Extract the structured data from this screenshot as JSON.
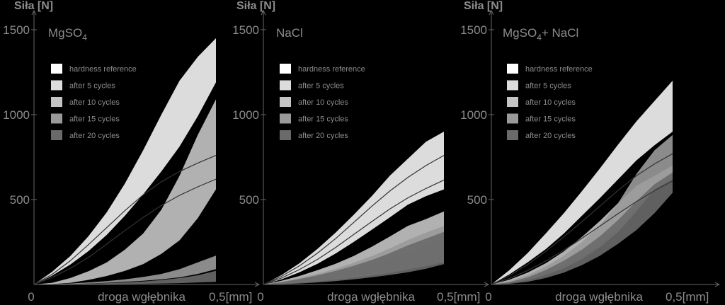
{
  "colors": {
    "background": "#000000",
    "axis": "#666666",
    "tick_text": "#8c8c8c",
    "hardness_reference": "#ffffff",
    "after_5_cycles": "#dcdcdc",
    "after_10_cycles": "#c4c4c4",
    "after_15_cycles": "#9a9a9a",
    "after_20_cycles": "#6a6a6a",
    "curve": "#333333"
  },
  "chart_data": [
    {
      "type": "area",
      "title": "MgSO",
      "title_subscript": "4",
      "title_suffix": "",
      "ylabel": "Siła [N]",
      "xlabel": "droga wgłębnika",
      "x_origin_label": "0",
      "x_end_label": "0,5[mm]",
      "ylim": [
        0,
        1500
      ],
      "xlim": [
        0,
        0.5
      ],
      "yticks": [
        500,
        1000,
        1500
      ],
      "legend_position": "top-left",
      "legend": [
        "hardness reference",
        "after 5 cycles",
        "after 10 cycles",
        "after 15 cycles",
        "after 20 cycles"
      ],
      "x": [
        0,
        0.05,
        0.1,
        0.15,
        0.2,
        0.25,
        0.3,
        0.35,
        0.4,
        0.45,
        0.5
      ],
      "bands": [
        {
          "name": "after 5 cycles",
          "color_key": "after_5_cycles",
          "lower": [
            0,
            52,
            118,
            197,
            292,
            405,
            530,
            666,
            812,
            990,
            1190
          ],
          "upper": [
            0,
            75,
            168,
            285,
            425,
            595,
            790,
            1000,
            1200,
            1340,
            1450
          ]
        },
        {
          "name": "after 10 cycles",
          "color_key": "after_10_cycles",
          "lower": [
            0,
            2,
            10,
            27,
            50,
            80,
            120,
            180,
            260,
            390,
            560
          ],
          "upper": [
            0,
            10,
            38,
            78,
            130,
            205,
            300,
            440,
            640,
            880,
            1090
          ]
        },
        {
          "name": "after 15 cycles",
          "color_key": "after_15_cycles",
          "lower": [
            0,
            0,
            2,
            6,
            10,
            16,
            22,
            30,
            42,
            62,
            90
          ],
          "upper": [
            0,
            2,
            6,
            12,
            20,
            30,
            44,
            62,
            90,
            130,
            170
          ]
        },
        {
          "name": "after 20 cycles",
          "color_key": "after_20_cycles",
          "lower": [
            0,
            0,
            0,
            1,
            2,
            3,
            4,
            6,
            8,
            12,
            16
          ],
          "upper": [
            0,
            0,
            2,
            5,
            8,
            12,
            18,
            26,
            38,
            54,
            80
          ]
        }
      ],
      "curves": [
        [
          0,
          60,
          140,
          235,
          335,
          435,
          528,
          605,
          665,
          715,
          760
        ],
        [
          0,
          42,
          95,
          160,
          238,
          318,
          395,
          465,
          525,
          575,
          620
        ]
      ]
    },
    {
      "type": "area",
      "title": "NaCl",
      "title_subscript": "",
      "title_suffix": "",
      "ylabel": "Siła [N]",
      "xlabel": "droga wgłębnika",
      "x_origin_label": "0",
      "x_end_label": "0,5[mm]",
      "ylim": [
        0,
        1500
      ],
      "xlim": [
        0,
        0.5
      ],
      "yticks": [
        500,
        1000,
        1500
      ],
      "legend_position": "top-left",
      "legend": [
        "hardness reference",
        "after 5 cycles",
        "after 10 cycles",
        "after 15 cycles",
        "after 20 cycles"
      ],
      "x": [
        0,
        0.05,
        0.1,
        0.15,
        0.2,
        0.25,
        0.3,
        0.35,
        0.4,
        0.45,
        0.5
      ],
      "bands": [
        {
          "name": "after 5 cycles",
          "color_key": "after_5_cycles",
          "lower": [
            0,
            30,
            72,
            122,
            182,
            250,
            322,
            395,
            470,
            520,
            560
          ],
          "upper": [
            0,
            55,
            125,
            210,
            305,
            410,
            520,
            640,
            740,
            840,
            900
          ]
        },
        {
          "name": "after 10 cycles",
          "color_key": "after_10_cycles",
          "lower": [
            0,
            12,
            28,
            46,
            68,
            92,
            120,
            152,
            185,
            225,
            270
          ],
          "upper": [
            0,
            22,
            50,
            84,
            122,
            168,
            222,
            282,
            345,
            385,
            430
          ]
        },
        {
          "name": "after 15 cycles",
          "color_key": "after_15_cycles",
          "lower": [
            0,
            4,
            10,
            18,
            27,
            38,
            52,
            68,
            88,
            108,
            130
          ],
          "upper": [
            0,
            16,
            38,
            63,
            92,
            127,
            167,
            212,
            262,
            305,
            345
          ]
        },
        {
          "name": "after 20 cycles",
          "color_key": "after_20_cycles",
          "lower": [
            0,
            2,
            6,
            12,
            20,
            30,
            42,
            56,
            72,
            92,
            120
          ],
          "upper": [
            0,
            14,
            32,
            54,
            80,
            110,
            144,
            184,
            230,
            270,
            310
          ]
        }
      ],
      "curves": [
        [
          0,
          48,
          110,
          185,
          270,
          365,
          460,
          550,
          630,
          700,
          760
        ],
        [
          0,
          38,
          88,
          148,
          218,
          294,
          370,
          444,
          510,
          565,
          615
        ]
      ]
    },
    {
      "type": "area",
      "title": "MgSO",
      "title_subscript": "4",
      "title_suffix": "+ NaCl",
      "ylabel": "Siła [N]",
      "xlabel": "droga wgłębnika",
      "x_origin_label": "0",
      "x_end_label": "0,5[mm]",
      "ylim": [
        0,
        1500
      ],
      "xlim": [
        0,
        0.5
      ],
      "yticks": [
        500,
        1000,
        1500
      ],
      "legend_position": "top-left",
      "legend": [
        "hardness reference",
        "after 5 cycles",
        "after 10 cycles",
        "after 15 cycles",
        "after 20 cycles"
      ],
      "x": [
        0,
        0.05,
        0.1,
        0.15,
        0.2,
        0.25,
        0.3,
        0.35,
        0.4,
        0.45,
        0.5
      ],
      "bands": [
        {
          "name": "after 5 cycles",
          "color_key": "after_5_cycles",
          "lower": [
            0,
            60,
            130,
            208,
            300,
            405,
            510,
            620,
            730,
            820,
            900
          ],
          "upper": [
            0,
            85,
            185,
            300,
            420,
            550,
            685,
            825,
            960,
            1080,
            1200
          ]
        },
        {
          "name": "after 10 cycles",
          "color_key": "after_10_cycles",
          "lower": [
            0,
            12,
            35,
            68,
            112,
            170,
            245,
            340,
            450,
            560,
            640
          ],
          "upper": [
            0,
            28,
            70,
            125,
            195,
            280,
            375,
            480,
            580,
            640,
            700
          ]
        },
        {
          "name": "after 15 cycles",
          "color_key": "after_15_cycles",
          "lower": [
            0,
            8,
            26,
            55,
            95,
            150,
            220,
            310,
            430,
            560,
            620
          ],
          "upper": [
            0,
            20,
            55,
            105,
            170,
            250,
            350,
            480,
            650,
            790,
            880
          ]
        },
        {
          "name": "after 20 cycles",
          "color_key": "after_20_cycles",
          "lower": [
            0,
            4,
            16,
            38,
            70,
            114,
            170,
            240,
            320,
            420,
            540
          ],
          "upper": [
            0,
            14,
            42,
            85,
            140,
            205,
            285,
            380,
            490,
            590,
            660
          ]
        }
      ],
      "curves": [
        [
          0,
          52,
          118,
          195,
          280,
          370,
          462,
          555,
          640,
          710,
          770
        ],
        [
          0,
          36,
          82,
          138,
          202,
          272,
          345,
          418,
          488,
          552,
          610
        ]
      ]
    }
  ]
}
